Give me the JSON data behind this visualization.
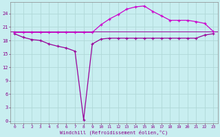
{
  "xlabel": "Windchill (Refroidissement éolien,°C)",
  "bg_color": "#c8eef0",
  "grid_color": "#b0d8d8",
  "line_color1": "#990099",
  "line_color2": "#cc00cc",
  "xlim": [
    -0.5,
    23.5
  ],
  "ylim": [
    -0.5,
    26.5
  ],
  "xticks": [
    0,
    1,
    2,
    3,
    4,
    5,
    6,
    7,
    8,
    9,
    10,
    11,
    12,
    13,
    14,
    15,
    16,
    17,
    18,
    19,
    20,
    21,
    22,
    23
  ],
  "yticks": [
    0,
    3,
    6,
    9,
    12,
    15,
    18,
    21,
    24
  ],
  "series1_x": [
    0,
    1,
    2,
    3,
    4,
    5,
    6,
    7,
    8,
    9,
    10,
    11,
    12,
    13,
    14,
    15,
    16,
    17,
    18,
    19,
    20,
    21,
    22,
    23
  ],
  "series1_y": [
    19.5,
    18.7,
    18.2,
    18.0,
    17.2,
    16.7,
    16.3,
    15.6,
    0.3,
    17.2,
    18.3,
    18.5,
    18.5,
    18.5,
    18.5,
    18.5,
    18.5,
    18.5,
    18.5,
    18.5,
    18.5,
    18.5,
    19.2,
    19.5
  ],
  "series2_x": [
    0,
    1,
    2,
    3,
    4,
    5,
    6,
    7,
    8,
    9,
    10,
    11,
    12,
    13,
    14,
    15,
    16,
    17,
    18,
    19,
    20,
    21,
    22,
    23
  ],
  "series2_y": [
    19.8,
    19.8,
    19.8,
    19.8,
    19.8,
    19.8,
    19.8,
    19.8,
    19.8,
    19.8,
    21.5,
    22.8,
    23.8,
    25.0,
    25.5,
    25.7,
    24.5,
    23.5,
    22.5,
    22.5,
    22.5,
    22.2,
    21.8,
    20.0
  ]
}
